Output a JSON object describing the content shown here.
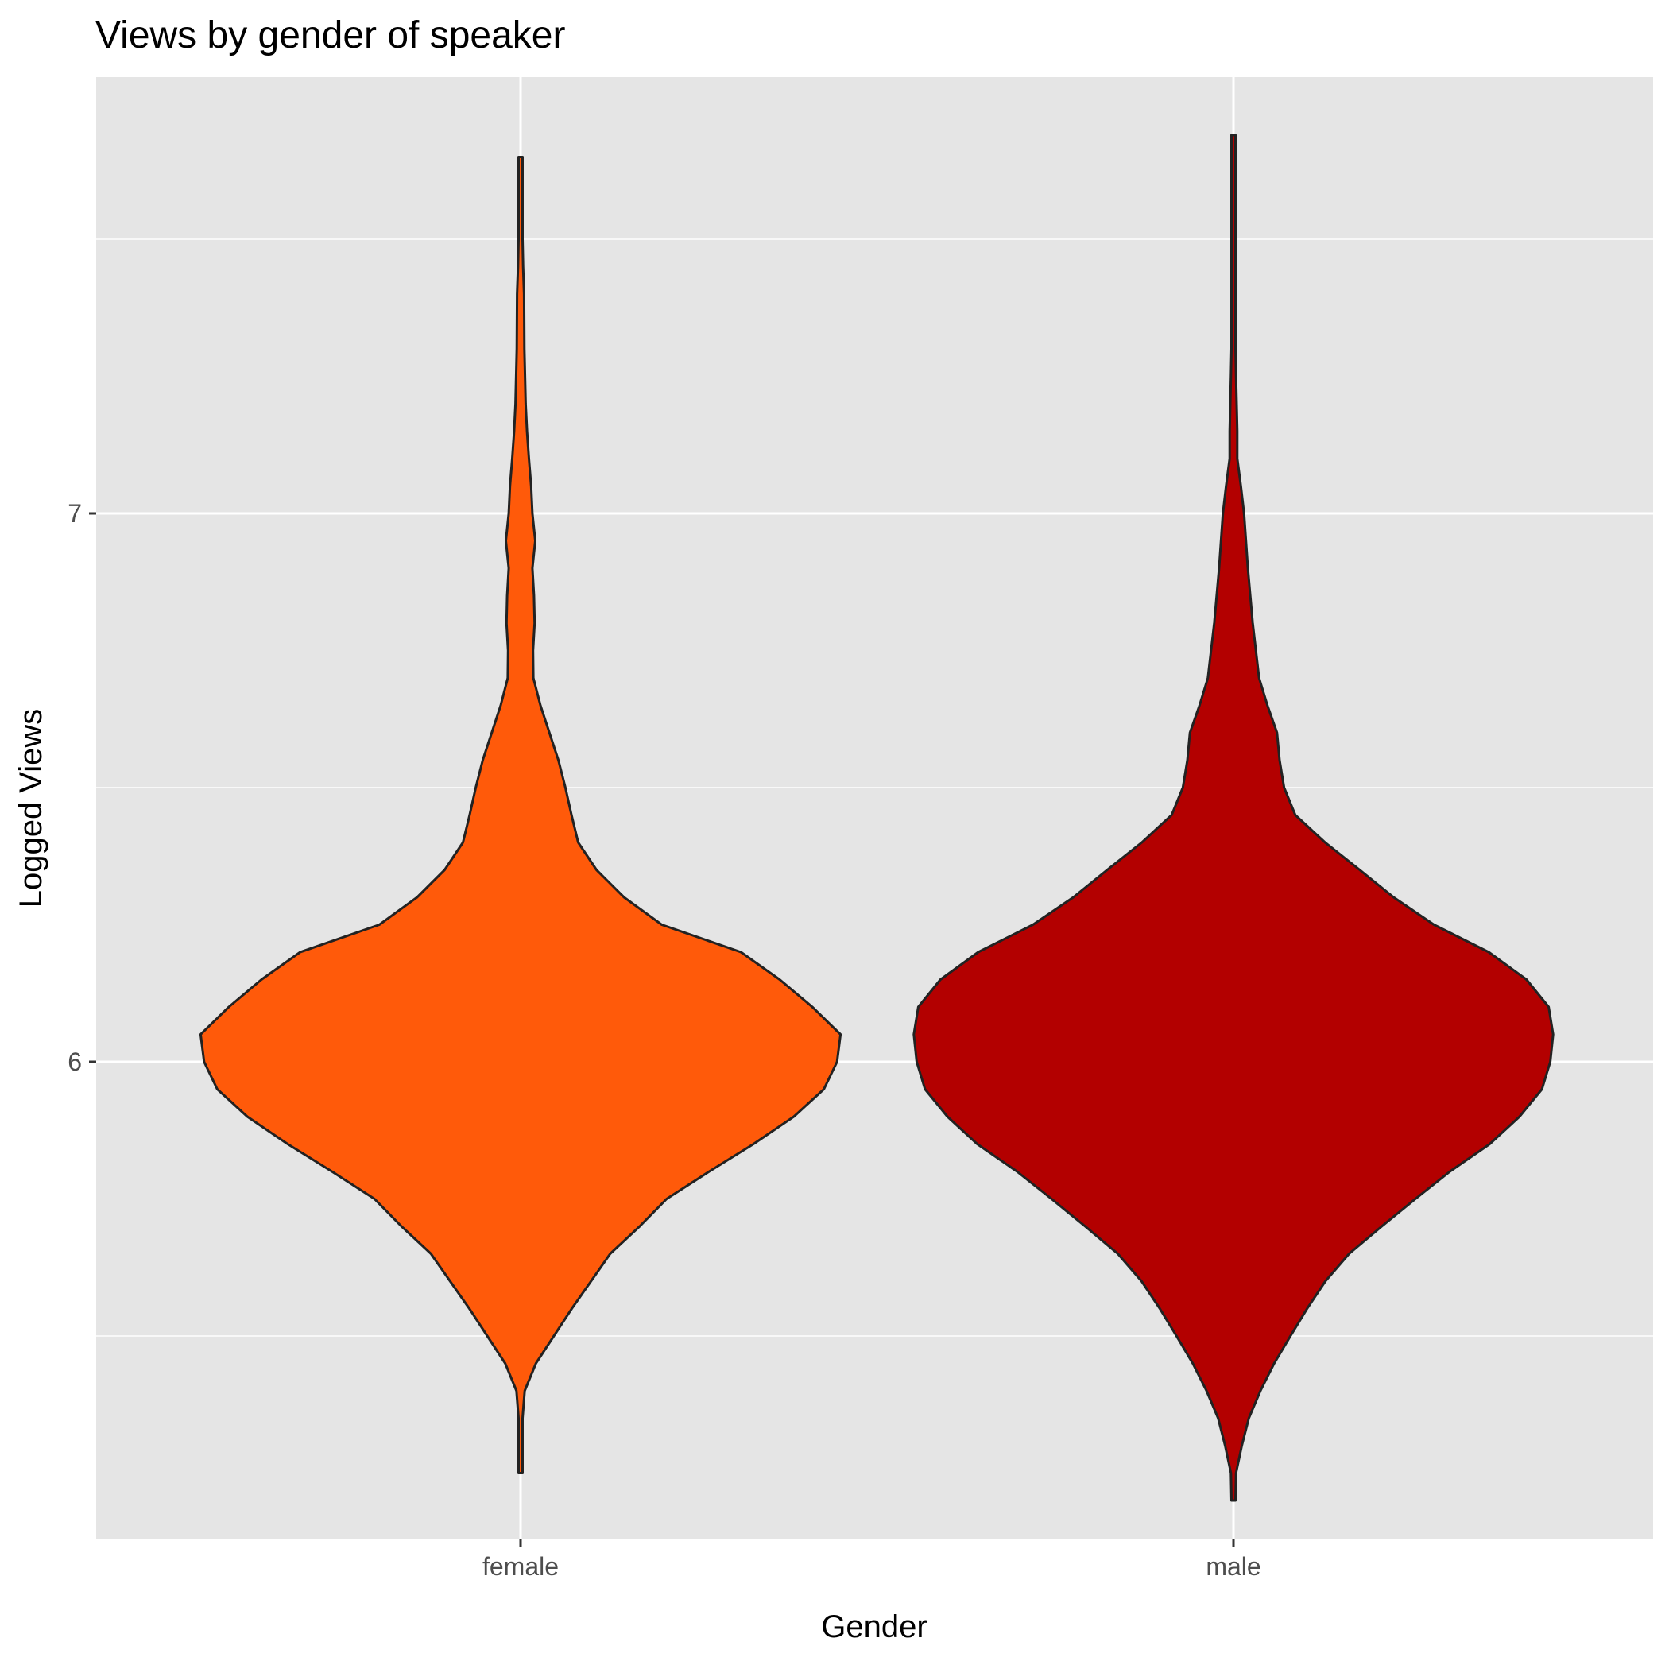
{
  "chart_data": {
    "type": "violin",
    "title": "Views by gender of speaker",
    "xlabel": "Gender",
    "ylabel": "Logged Views",
    "categories": [
      "female",
      "male"
    ],
    "y_ticks": [
      6,
      7
    ],
    "ylim": [
      5.14,
      7.83
    ],
    "grid": true,
    "legend": "none",
    "series": [
      {
        "category": "female",
        "color": "#FF5A0A",
        "outline": "#222222",
        "min": 5.25,
        "max": 7.65,
        "density_profile": [
          [
            5.25,
            0.0
          ],
          [
            5.35,
            0.0
          ],
          [
            5.4,
            0.013
          ],
          [
            5.45,
            0.048
          ],
          [
            5.5,
            0.104
          ],
          [
            5.55,
            0.16
          ],
          [
            5.6,
            0.22
          ],
          [
            5.65,
            0.28
          ],
          [
            5.7,
            0.372
          ],
          [
            5.75,
            0.456
          ],
          [
            5.8,
            0.589
          ],
          [
            5.85,
            0.727
          ],
          [
            5.9,
            0.853
          ],
          [
            5.95,
            0.947
          ],
          [
            6.0,
            0.988
          ],
          [
            6.05,
            0.999
          ],
          [
            6.1,
            0.911
          ],
          [
            6.15,
            0.809
          ],
          [
            6.2,
            0.688
          ],
          [
            6.25,
            0.441
          ],
          [
            6.3,
            0.323
          ],
          [
            6.35,
            0.237
          ],
          [
            6.4,
            0.18
          ],
          [
            6.45,
            0.159
          ],
          [
            6.5,
            0.14
          ],
          [
            6.55,
            0.118
          ],
          [
            6.6,
            0.09
          ],
          [
            6.65,
            0.062
          ],
          [
            6.7,
            0.04
          ],
          [
            6.75,
            0.039
          ],
          [
            6.8,
            0.044
          ],
          [
            6.85,
            0.042
          ],
          [
            6.9,
            0.037
          ],
          [
            6.95,
            0.046
          ],
          [
            7.0,
            0.037
          ],
          [
            7.05,
            0.033
          ],
          [
            7.1,
            0.026
          ],
          [
            7.15,
            0.02
          ],
          [
            7.2,
            0.016
          ],
          [
            7.3,
            0.012
          ],
          [
            7.4,
            0.011
          ],
          [
            7.45,
            0.008
          ],
          [
            7.5,
            0.005
          ],
          [
            7.55,
            0.0
          ],
          [
            7.65,
            0.0
          ]
        ]
      },
      {
        "category": "male",
        "color": "#B30000",
        "outline": "#222222",
        "min": 5.2,
        "max": 7.69,
        "density_profile": [
          [
            5.2,
            0.0
          ],
          [
            5.25,
            0.008
          ],
          [
            5.3,
            0.026
          ],
          [
            5.35,
            0.048
          ],
          [
            5.4,
            0.084
          ],
          [
            5.45,
            0.127
          ],
          [
            5.5,
            0.178
          ],
          [
            5.55,
            0.23
          ],
          [
            5.6,
            0.287
          ],
          [
            5.65,
            0.361
          ],
          [
            5.7,
            0.463
          ],
          [
            5.75,
            0.568
          ],
          [
            5.8,
            0.676
          ],
          [
            5.85,
            0.8
          ],
          [
            5.9,
            0.893
          ],
          [
            5.95,
            0.963
          ],
          [
            6.0,
            0.989
          ],
          [
            6.05,
            0.998
          ],
          [
            6.1,
            0.984
          ],
          [
            6.15,
            0.915
          ],
          [
            6.2,
            0.797
          ],
          [
            6.25,
            0.626
          ],
          [
            6.3,
            0.5
          ],
          [
            6.35,
            0.394
          ],
          [
            6.4,
            0.286
          ],
          [
            6.45,
            0.193
          ],
          [
            6.5,
            0.158
          ],
          [
            6.55,
            0.144
          ],
          [
            6.6,
            0.136
          ],
          [
            6.65,
            0.106
          ],
          [
            6.7,
            0.08
          ],
          [
            6.75,
            0.07
          ],
          [
            6.8,
            0.06
          ],
          [
            6.9,
            0.045
          ],
          [
            7.0,
            0.033
          ],
          [
            7.05,
            0.023
          ],
          [
            7.1,
            0.012
          ],
          [
            7.15,
            0.012
          ],
          [
            7.2,
            0.01
          ],
          [
            7.25,
            0.008
          ],
          [
            7.3,
            0.005
          ],
          [
            7.4,
            0.0
          ],
          [
            7.69,
            0.0
          ]
        ]
      }
    ]
  }
}
